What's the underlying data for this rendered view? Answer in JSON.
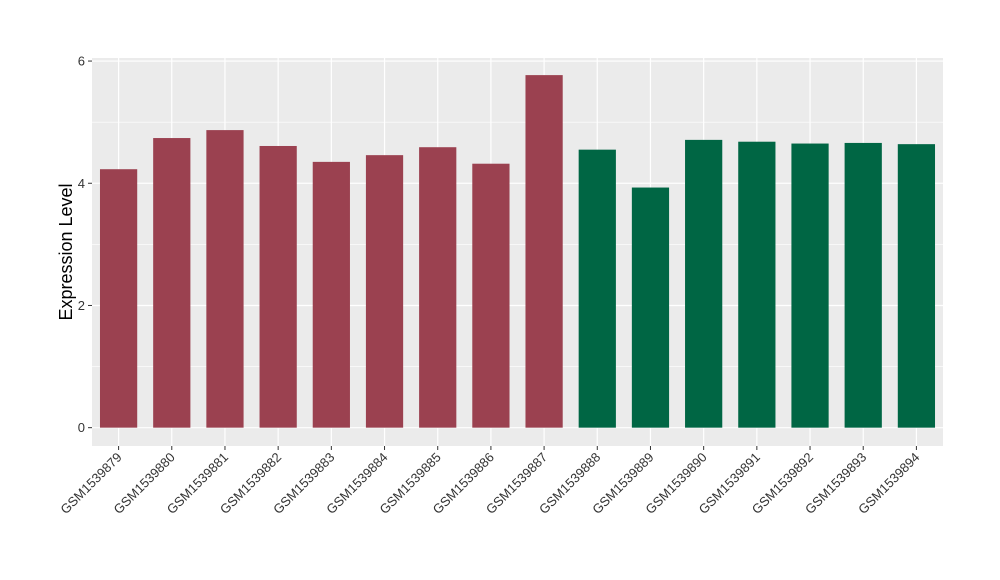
{
  "chart_data": {
    "type": "bar",
    "ylabel": "Expression Level",
    "xlabel": "",
    "ylim": [
      -0.3,
      6.05
    ],
    "yticks": [
      0,
      2,
      4,
      6
    ],
    "grid": true,
    "categories": [
      "GSM1539879",
      "GSM1539880",
      "GSM1539881",
      "GSM1539882",
      "GSM1539883",
      "GSM1539884",
      "GSM1539885",
      "GSM1539886",
      "GSM1539887",
      "GSM1539888",
      "GSM1539889",
      "GSM1539890",
      "GSM1539891",
      "GSM1539892",
      "GSM1539893",
      "GSM1539894"
    ],
    "values": [
      4.23,
      4.74,
      4.87,
      4.61,
      4.35,
      4.46,
      4.59,
      4.32,
      5.77,
      4.55,
      3.93,
      4.71,
      4.68,
      4.65,
      4.66,
      4.64
    ],
    "colors": [
      "#9b4150",
      "#9b4150",
      "#9b4150",
      "#9b4150",
      "#9b4150",
      "#9b4150",
      "#9b4150",
      "#9b4150",
      "#9b4150",
      "#006644",
      "#006644",
      "#006644",
      "#006644",
      "#006644",
      "#006644",
      "#006644"
    ],
    "panel_background": "#ebebeb",
    "grid_color": "#ffffff"
  }
}
